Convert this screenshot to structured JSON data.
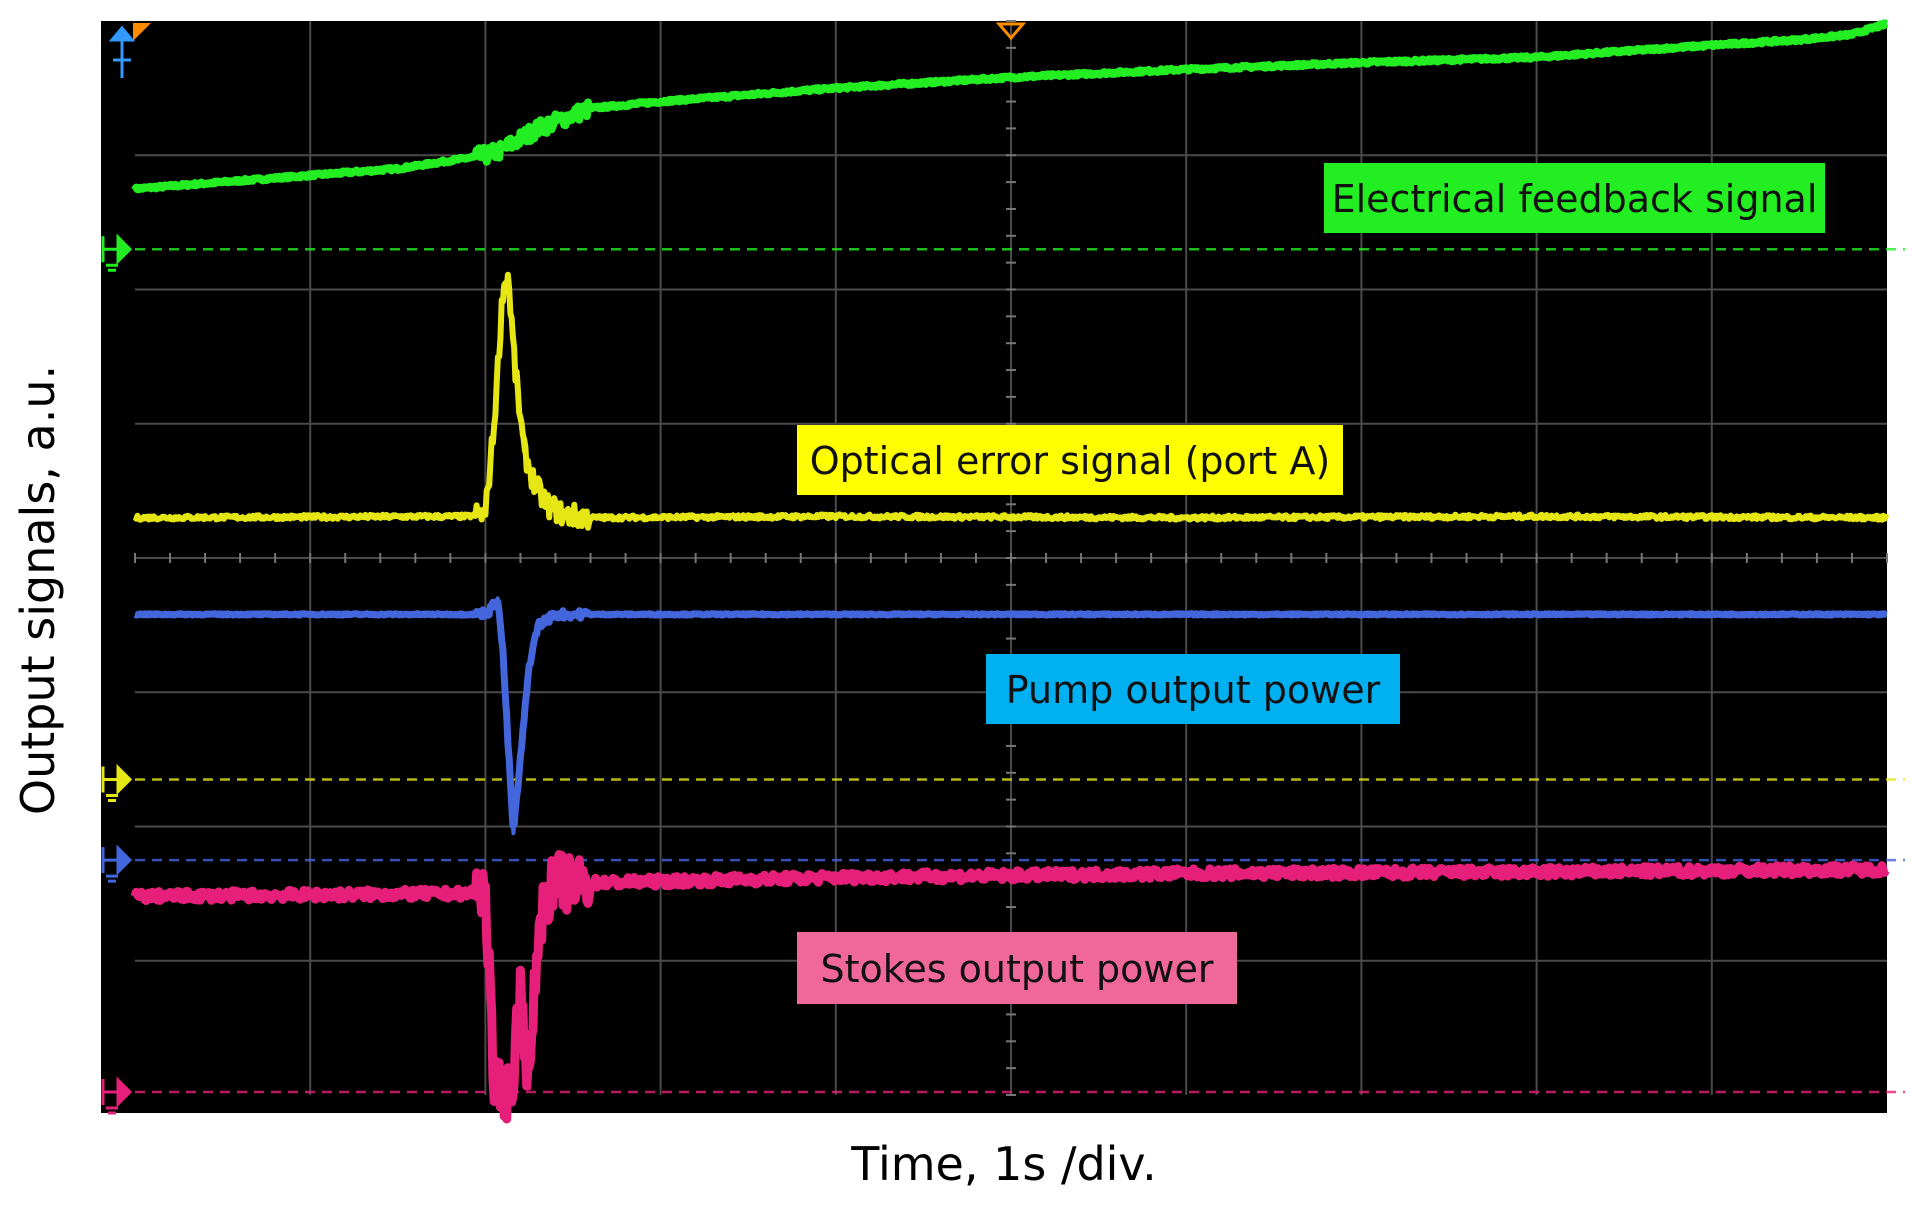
{
  "chart_data": {
    "type": "line",
    "title": "",
    "xlabel": "Time, 1s /div.",
    "ylabel": "Output signals, a.u.",
    "grid": true,
    "x_divisions": 10,
    "y_divisions": 8,
    "x_unit": "div",
    "y_unit": "div",
    "xlim": [
      0,
      10
    ],
    "ylim": [
      0,
      8
    ],
    "background": "#000000",
    "grid_color": "#4a4a4a",
    "series": [
      {
        "name": "Electrical feedback signal",
        "color": "#22ee22",
        "label_bg": "#22ee22",
        "ground_level": 6.3,
        "x": [
          0,
          0.5,
          1,
          1.5,
          2.0,
          2.08,
          2.3,
          2.6,
          3.0,
          4,
          5,
          6,
          7,
          7.5,
          8,
          9,
          9.5,
          9.8,
          10
        ],
        "y": [
          6.75,
          6.8,
          6.85,
          6.9,
          7.0,
          7.03,
          7.2,
          7.35,
          7.4,
          7.5,
          7.58,
          7.64,
          7.69,
          7.71,
          7.73,
          7.82,
          7.86,
          7.9,
          7.98
        ]
      },
      {
        "name": "Optical error signal (port A)",
        "color": "#e6e614",
        "label_bg": "#ffff00",
        "ground_level": 2.35,
        "x": [
          0,
          1.9,
          2.0,
          2.05,
          2.1,
          2.13,
          2.17,
          2.22,
          2.28,
          2.35,
          2.45,
          2.6,
          4,
          6,
          8,
          10
        ],
        "y": [
          4.3,
          4.31,
          4.33,
          5.0,
          6.0,
          6.1,
          5.4,
          4.8,
          4.55,
          4.4,
          4.32,
          4.3,
          4.31,
          4.3,
          4.31,
          4.3
        ]
      },
      {
        "name": "Pump output power",
        "color": "#4466dd",
        "label_bg": "#00b0f0",
        "ground_level": 1.75,
        "x": [
          0,
          1.95,
          2.02,
          2.07,
          2.1,
          2.13,
          2.16,
          2.2,
          2.25,
          2.3,
          2.4,
          2.6,
          10
        ],
        "y": [
          3.58,
          3.58,
          3.6,
          3.7,
          3.3,
          2.6,
          1.95,
          2.5,
          3.2,
          3.5,
          3.58,
          3.58,
          3.58
        ]
      },
      {
        "name": "Stokes output power",
        "color": "#e6207a",
        "label_bg": "#f0689a",
        "ground_level": 0.0,
        "x": [
          0,
          1.9,
          2.0,
          2.05,
          2.1,
          2.15,
          2.2,
          2.25,
          2.3,
          2.35,
          2.42,
          2.5,
          2.6,
          4,
          6,
          8,
          10
        ],
        "y": [
          1.48,
          1.5,
          1.55,
          0.05,
          0.02,
          0.03,
          0.8,
          0.05,
          1.2,
          1.5,
          1.6,
          1.55,
          1.58,
          1.62,
          1.65,
          1.66,
          1.68
        ]
      }
    ]
  }
}
